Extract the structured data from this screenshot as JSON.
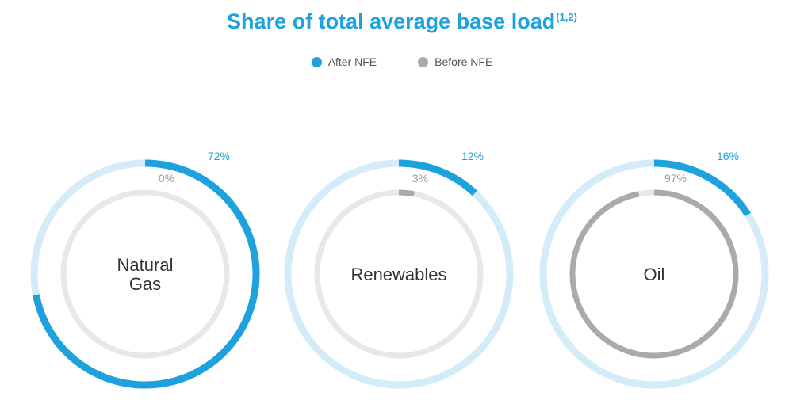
{
  "colors": {
    "title": "#1ea2dd",
    "after": "#1ea2dd",
    "after_track": "#d3ecf8",
    "before": "#aaaaaa",
    "before_track": "#e8e8e8",
    "before_label": "#9a9a9a"
  },
  "chart_data": {
    "type": "donut",
    "title": "Share of total average base load",
    "title_superscript": "(1,2)",
    "legend_placement": "top-center",
    "legend": [
      {
        "key": "after",
        "label": "After NFE"
      },
      {
        "key": "before",
        "label": "Before NFE"
      }
    ],
    "categories": [
      {
        "name": [
          "Natural",
          "Gas"
        ],
        "after": 72,
        "before": 0
      },
      {
        "name": [
          "Renewables"
        ],
        "after": 12,
        "before": 3
      },
      {
        "name": [
          "Oil"
        ],
        "after": 16,
        "before": 97
      }
    ],
    "value_suffix": "%"
  }
}
